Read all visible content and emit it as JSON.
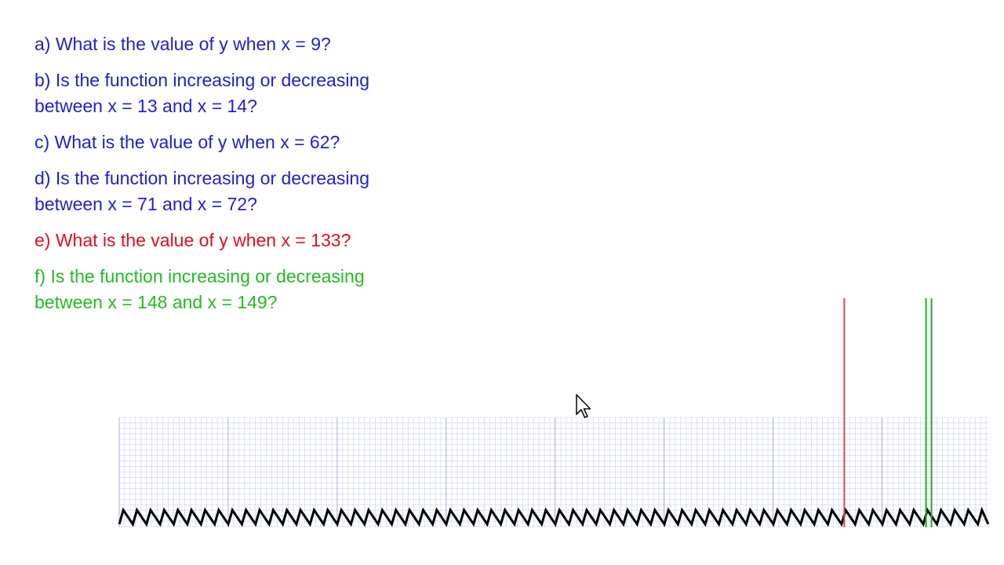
{
  "questions": [
    {
      "lines": [
        "a) What is the value of y when x = 9?"
      ],
      "color": "#1f1fcf"
    },
    {
      "lines": [
        "b) Is the function increasing or decreasing",
        "between x = 13 and x = 14?"
      ],
      "color": "#1f1fcf"
    },
    {
      "lines": [
        "c) What is the value of y when x = 62?"
      ],
      "color": "#1f1fcf"
    },
    {
      "lines": [
        "d) Is the function increasing or decreasing",
        "between x = 71 and x = 72?"
      ],
      "color": "#1f1fcf"
    },
    {
      "lines": [
        "e) What is the value of y when x = 133?"
      ],
      "color": "#e0101e"
    },
    {
      "lines": [
        "f) Is the function increasing or decreasing",
        "between x = 148 and x = 149?"
      ],
      "color": "#22bb22"
    }
  ],
  "graph": {
    "grid_color": "#c9cdf6",
    "major_grid_color": "#b9bde8",
    "wave_color": "#000000",
    "x_markers": [
      {
        "x": 133,
        "color": "#e84848"
      },
      {
        "x": 148,
        "color": "#22aa22"
      },
      {
        "x": 149,
        "color": "#22aa22"
      }
    ]
  },
  "icons": {
    "pointer": "mouse-pointer-icon"
  }
}
